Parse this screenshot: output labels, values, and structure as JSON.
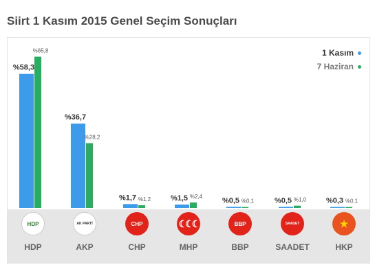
{
  "title": "Siirt 1 Kasım 2015 Genel Seçim Sonuçları",
  "legend": {
    "series1": "1 Kasım",
    "series2": "7 Haziran"
  },
  "colors": {
    "series1": "#3d9be9",
    "series2": "#27ae60",
    "logo_bg": "#e6e6e6"
  },
  "chart_data": {
    "type": "bar",
    "title": "Siirt 1 Kasım 2015 Genel Seçim Sonuçları",
    "categories": [
      "HDP",
      "AKP",
      "CHP",
      "MHP",
      "BBP",
      "SAADET",
      "HKP"
    ],
    "series": [
      {
        "name": "1 Kasım",
        "values": [
          58.3,
          36.7,
          1.7,
          1.5,
          0.5,
          0.5,
          0.3
        ],
        "labels": [
          "%58,3",
          "%36,7",
          "%1,7",
          "%1,5",
          "%0,5",
          "%0,5",
          "%0,3"
        ]
      },
      {
        "name": "7 Haziran",
        "values": [
          65.8,
          28.2,
          1.2,
          2.4,
          0.1,
          1.0,
          0.1
        ],
        "labels": [
          "%65,8",
          "%28,2",
          "%1,2",
          "%2,4",
          "%0,1",
          "%1,0",
          "%0,1"
        ]
      }
    ],
    "legend_position": "top-right",
    "grid": false
  },
  "parties": [
    {
      "name": "HDP",
      "icon": "hdp-logo-icon",
      "logo_text": "HDP"
    },
    {
      "name": "AKP",
      "icon": "akp-logo-icon",
      "logo_text": "AK PARTİ"
    },
    {
      "name": "CHP",
      "icon": "chp-logo-icon",
      "logo_text": "CHP"
    },
    {
      "name": "MHP",
      "icon": "mhp-logo-icon",
      "logo_text": ""
    },
    {
      "name": "BBP",
      "icon": "bbp-logo-icon",
      "logo_text": "BBP"
    },
    {
      "name": "SAADET",
      "icon": "saadet-logo-icon",
      "logo_text": "SAADET"
    },
    {
      "name": "HKP",
      "icon": "hkp-logo-icon",
      "logo_text": ""
    }
  ]
}
